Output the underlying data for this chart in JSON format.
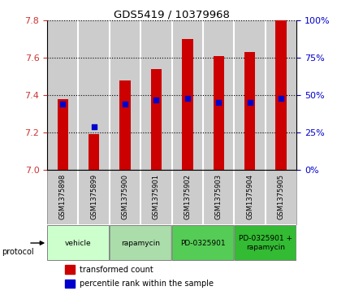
{
  "title": "GDS5419 / 10379968",
  "samples": [
    "GSM1375898",
    "GSM1375899",
    "GSM1375900",
    "GSM1375901",
    "GSM1375902",
    "GSM1375903",
    "GSM1375904",
    "GSM1375905"
  ],
  "transformed_counts": [
    7.38,
    7.19,
    7.48,
    7.54,
    7.7,
    7.61,
    7.63,
    7.8
  ],
  "percentile_ranks": [
    44,
    29,
    44,
    47,
    48,
    45,
    45,
    48
  ],
  "bar_bottom": 7.0,
  "ylim_left": [
    7.0,
    7.8
  ],
  "ylim_right": [
    0,
    100
  ],
  "yticks_left": [
    7.0,
    7.2,
    7.4,
    7.6,
    7.8
  ],
  "yticks_right": [
    0,
    25,
    50,
    75,
    100
  ],
  "bar_color": "#cc0000",
  "dot_color": "#0000cc",
  "protocols": [
    {
      "label": "vehicle",
      "cols": [
        0,
        1
      ],
      "color": "#ccffcc"
    },
    {
      "label": "rapamycin",
      "cols": [
        2,
        3
      ],
      "color": "#aaddaa"
    },
    {
      "label": "PD-0325901",
      "cols": [
        4,
        5
      ],
      "color": "#55cc55"
    },
    {
      "label": "PD-0325901 +\nrapamycin",
      "cols": [
        6,
        7
      ],
      "color": "#33bb33"
    }
  ],
  "tick_label_color_left": "#cc3333",
  "tick_label_color_right": "#0000cc",
  "grid_color": "#000000",
  "bar_width": 0.35,
  "sample_bg_color": "#cccccc",
  "plot_bg_color": "#ffffff"
}
